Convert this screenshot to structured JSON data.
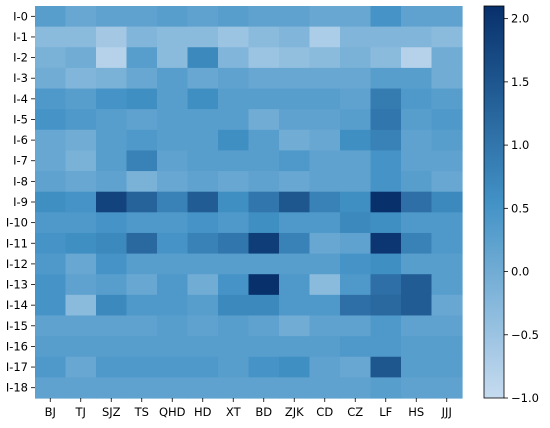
{
  "chart_data": {
    "type": "heatmap",
    "title": "",
    "xlabel": "",
    "ylabel": "",
    "rows": [
      "I-0",
      "I-1",
      "I-2",
      "I-3",
      "I-4",
      "I-5",
      "I-6",
      "I-7",
      "I-8",
      "I-9",
      "I-10",
      "I-11",
      "I-12",
      "I-13",
      "I-14",
      "I-15",
      "I-16",
      "I-17",
      "I-18"
    ],
    "columns": [
      "BJ",
      "TJ",
      "SJZ",
      "TS",
      "QHD",
      "HD",
      "XT",
      "BD",
      "ZJK",
      "CD",
      "CZ",
      "LF",
      "HS",
      "JJJ"
    ],
    "values": [
      [
        0.3,
        0.1,
        0.2,
        0.2,
        0.3,
        0.2,
        0.3,
        0.2,
        0.2,
        0.1,
        0.1,
        0.5,
        0.2,
        0.2
      ],
      [
        -0.3,
        -0.3,
        -0.6,
        -0.2,
        -0.3,
        -0.3,
        -0.5,
        -0.3,
        -0.2,
        -0.7,
        -0.2,
        -0.2,
        -0.2,
        -0.3
      ],
      [
        -0.1,
        0.0,
        -0.8,
        0.3,
        -0.3,
        0.7,
        -0.2,
        -0.5,
        -0.4,
        -0.3,
        -0.1,
        -0.3,
        -0.8,
        0.0
      ],
      [
        0.0,
        -0.2,
        -0.1,
        0.1,
        0.3,
        0.1,
        0.2,
        0.1,
        0.1,
        0.1,
        0.1,
        0.3,
        0.3,
        0.0
      ],
      [
        0.4,
        0.3,
        0.5,
        0.6,
        0.3,
        0.6,
        0.3,
        0.3,
        0.3,
        0.3,
        0.2,
        0.9,
        0.4,
        0.3
      ],
      [
        0.5,
        0.4,
        0.3,
        0.2,
        0.3,
        0.3,
        0.3,
        0.0,
        0.2,
        0.2,
        0.3,
        1.0,
        0.3,
        0.4
      ],
      [
        0.1,
        0.0,
        0.3,
        0.4,
        0.3,
        0.3,
        0.6,
        0.3,
        0.0,
        0.1,
        0.6,
        0.8,
        0.2,
        0.3
      ],
      [
        0.1,
        -0.1,
        0.3,
        0.8,
        0.2,
        0.3,
        0.3,
        0.3,
        0.4,
        0.2,
        0.2,
        0.5,
        0.2,
        0.2
      ],
      [
        0.2,
        0.1,
        0.2,
        -0.1,
        0.1,
        0.2,
        0.1,
        0.2,
        0.1,
        0.2,
        0.2,
        0.5,
        0.3,
        0.1
      ],
      [
        0.6,
        0.5,
        1.8,
        1.3,
        0.8,
        1.4,
        0.6,
        1.0,
        1.5,
        0.8,
        0.6,
        2.1,
        1.1,
        0.7
      ],
      [
        0.4,
        0.4,
        0.5,
        0.4,
        0.4,
        0.5,
        0.4,
        0.6,
        0.4,
        0.4,
        0.7,
        0.6,
        0.4,
        0.4
      ],
      [
        0.5,
        0.6,
        0.7,
        1.2,
        0.5,
        0.8,
        1.0,
        1.9,
        0.8,
        0.1,
        0.2,
        2.0,
        0.8,
        0.4
      ],
      [
        0.4,
        0.1,
        0.5,
        0.3,
        0.3,
        0.3,
        0.3,
        0.3,
        0.3,
        0.3,
        0.5,
        0.6,
        0.3,
        0.3
      ],
      [
        0.5,
        0.2,
        0.3,
        0.1,
        0.4,
        0.0,
        0.5,
        2.1,
        0.4,
        -0.3,
        0.4,
        1.1,
        1.4,
        0.3
      ],
      [
        0.5,
        -0.3,
        0.7,
        0.4,
        0.4,
        0.3,
        0.7,
        0.7,
        0.4,
        0.4,
        1.1,
        1.2,
        1.4,
        0.1
      ],
      [
        0.2,
        0.2,
        0.2,
        0.2,
        0.3,
        0.2,
        0.3,
        0.2,
        0.0,
        0.2,
        0.2,
        0.4,
        0.2,
        0.2
      ],
      [
        0.3,
        0.3,
        0.3,
        0.3,
        0.3,
        0.3,
        0.3,
        0.3,
        0.3,
        0.3,
        0.4,
        0.4,
        0.3,
        0.3
      ],
      [
        0.4,
        0.1,
        0.4,
        0.4,
        0.4,
        0.4,
        0.3,
        0.5,
        0.6,
        0.2,
        0.1,
        1.5,
        0.3,
        0.3
      ],
      [
        0.2,
        0.2,
        0.2,
        0.2,
        0.2,
        0.2,
        0.2,
        0.2,
        0.2,
        0.2,
        0.2,
        0.3,
        0.2,
        0.2
      ]
    ],
    "color_scale": {
      "min": -1.0,
      "max": 2.1,
      "low_color": "#c6dbef",
      "mid_color": "#4292c6",
      "high_color": "#08306b"
    },
    "colorbar": {
      "ticks": [
        2.0,
        1.5,
        1.0,
        0.5,
        0.0,
        -0.5,
        -1.0
      ],
      "tick_labels": [
        "2.0",
        "1.5",
        "1.0",
        "0.5",
        "0.0",
        "−0.5",
        "−1.0"
      ]
    },
    "grid": false,
    "legend": "colorbar-right"
  }
}
